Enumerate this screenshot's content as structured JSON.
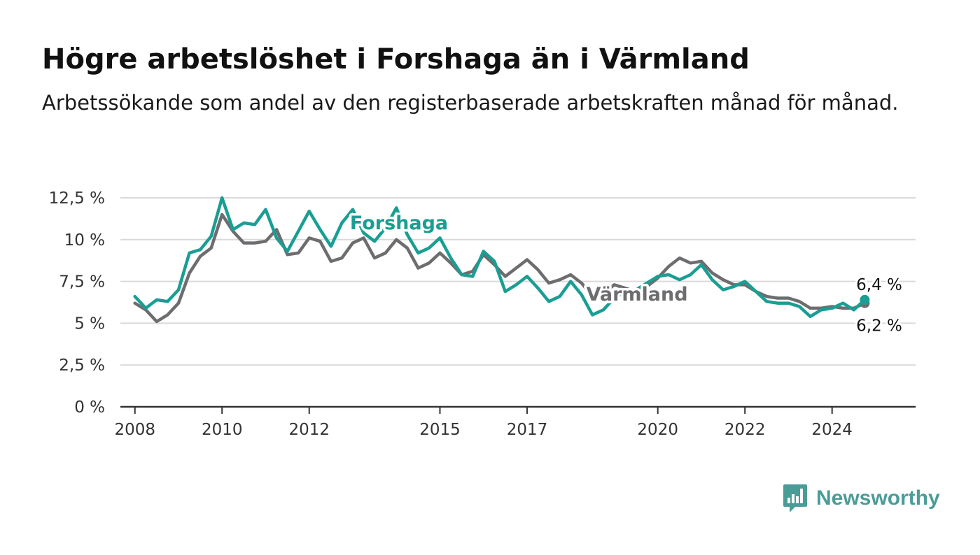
{
  "title": "Högre arbetslöshet i Forshaga än i Värmland",
  "subtitle": "Arbetssökande som andel av den registerbaserade arbetskraften månad för månad.",
  "brand": {
    "name": "Newsworthy",
    "icon": "bar-chart-speech-bubble-icon",
    "color": "#4a9c97"
  },
  "chart_data": {
    "type": "line",
    "ylim": [
      0,
      12.5
    ],
    "yticks": [
      0,
      2.5,
      5,
      7.5,
      10,
      12.5
    ],
    "ytick_labels": [
      "0 %",
      "2,5 %",
      "5 %",
      "7,5 %",
      "10 %",
      "12,5 %"
    ],
    "xlim": [
      "2007-09",
      "2025-12"
    ],
    "xticks": [
      "2008-01",
      "2010-01",
      "2012-01",
      "2015-01",
      "2017-01",
      "2020-01",
      "2022-01",
      "2024-01"
    ],
    "xtick_labels": [
      "2008",
      "2010",
      "2012",
      "2015",
      "2017",
      "2020",
      "2022",
      "2024"
    ],
    "grid": true,
    "series": [
      {
        "name": "Värmland",
        "color": "#6d6d70",
        "points": [
          [
            "2008-01",
            6.2
          ],
          [
            "2008-04",
            5.8
          ],
          [
            "2008-07",
            5.1
          ],
          [
            "2008-10",
            5.5
          ],
          [
            "2009-01",
            6.2
          ],
          [
            "2009-04",
            8.0
          ],
          [
            "2009-07",
            9.0
          ],
          [
            "2009-10",
            9.5
          ],
          [
            "2010-01",
            11.5
          ],
          [
            "2010-04",
            10.5
          ],
          [
            "2010-07",
            9.8
          ],
          [
            "2010-10",
            9.8
          ],
          [
            "2011-01",
            9.9
          ],
          [
            "2011-04",
            10.6
          ],
          [
            "2011-07",
            9.1
          ],
          [
            "2011-10",
            9.2
          ],
          [
            "2012-01",
            10.1
          ],
          [
            "2012-04",
            9.9
          ],
          [
            "2012-07",
            8.7
          ],
          [
            "2012-10",
            8.9
          ],
          [
            "2013-01",
            9.8
          ],
          [
            "2013-04",
            10.1
          ],
          [
            "2013-07",
            8.9
          ],
          [
            "2013-10",
            9.2
          ],
          [
            "2014-01",
            10.0
          ],
          [
            "2014-04",
            9.5
          ],
          [
            "2014-07",
            8.3
          ],
          [
            "2014-10",
            8.6
          ],
          [
            "2015-01",
            9.2
          ],
          [
            "2015-04",
            8.6
          ],
          [
            "2015-07",
            7.9
          ],
          [
            "2015-10",
            8.1
          ],
          [
            "2016-01",
            9.1
          ],
          [
            "2016-04",
            8.5
          ],
          [
            "2016-07",
            7.8
          ],
          [
            "2016-10",
            8.3
          ],
          [
            "2017-01",
            8.8
          ],
          [
            "2017-04",
            8.2
          ],
          [
            "2017-07",
            7.4
          ],
          [
            "2017-10",
            7.6
          ],
          [
            "2018-01",
            7.9
          ],
          [
            "2018-04",
            7.4
          ],
          [
            "2018-07",
            6.6
          ],
          [
            "2018-10",
            6.8
          ],
          [
            "2019-01",
            7.3
          ],
          [
            "2019-04",
            7.1
          ],
          [
            "2019-07",
            6.9
          ],
          [
            "2019-10",
            7.2
          ],
          [
            "2020-01",
            7.7
          ],
          [
            "2020-04",
            8.4
          ],
          [
            "2020-07",
            8.9
          ],
          [
            "2020-10",
            8.6
          ],
          [
            "2021-01",
            8.7
          ],
          [
            "2021-04",
            8.0
          ],
          [
            "2021-07",
            7.6
          ],
          [
            "2021-10",
            7.3
          ],
          [
            "2022-01",
            7.3
          ],
          [
            "2022-04",
            6.9
          ],
          [
            "2022-07",
            6.6
          ],
          [
            "2022-10",
            6.5
          ],
          [
            "2023-01",
            6.5
          ],
          [
            "2023-04",
            6.3
          ],
          [
            "2023-07",
            5.9
          ],
          [
            "2023-10",
            5.9
          ],
          [
            "2024-01",
            6.0
          ],
          [
            "2024-04",
            5.9
          ],
          [
            "2024-07",
            5.9
          ],
          [
            "2024-10",
            6.2
          ]
        ],
        "end_label": "6,2 %"
      },
      {
        "name": "Forshaga",
        "color": "#1a9e93",
        "points": [
          [
            "2008-01",
            6.6
          ],
          [
            "2008-04",
            5.9
          ],
          [
            "2008-07",
            6.4
          ],
          [
            "2008-10",
            6.3
          ],
          [
            "2009-01",
            7.0
          ],
          [
            "2009-04",
            9.2
          ],
          [
            "2009-07",
            9.4
          ],
          [
            "2009-10",
            10.2
          ],
          [
            "2010-01",
            12.5
          ],
          [
            "2010-04",
            10.6
          ],
          [
            "2010-07",
            11.0
          ],
          [
            "2010-10",
            10.9
          ],
          [
            "2011-01",
            11.8
          ],
          [
            "2011-04",
            10.1
          ],
          [
            "2011-07",
            9.3
          ],
          [
            "2011-10",
            10.5
          ],
          [
            "2012-01",
            11.7
          ],
          [
            "2012-04",
            10.6
          ],
          [
            "2012-07",
            9.6
          ],
          [
            "2012-10",
            11.0
          ],
          [
            "2013-01",
            11.8
          ],
          [
            "2013-04",
            10.4
          ],
          [
            "2013-07",
            9.9
          ],
          [
            "2013-10",
            10.7
          ],
          [
            "2014-01",
            11.9
          ],
          [
            "2014-04",
            10.3
          ],
          [
            "2014-07",
            9.2
          ],
          [
            "2014-10",
            9.5
          ],
          [
            "2015-01",
            10.1
          ],
          [
            "2015-04",
            8.9
          ],
          [
            "2015-07",
            7.9
          ],
          [
            "2015-10",
            7.8
          ],
          [
            "2016-01",
            9.3
          ],
          [
            "2016-04",
            8.7
          ],
          [
            "2016-07",
            6.9
          ],
          [
            "2016-10",
            7.3
          ],
          [
            "2017-01",
            7.8
          ],
          [
            "2017-04",
            7.1
          ],
          [
            "2017-07",
            6.3
          ],
          [
            "2017-10",
            6.6
          ],
          [
            "2018-01",
            7.5
          ],
          [
            "2018-04",
            6.7
          ],
          [
            "2018-07",
            5.5
          ],
          [
            "2018-10",
            5.8
          ],
          [
            "2019-01",
            6.5
          ],
          [
            "2019-04",
            6.9
          ],
          [
            "2019-07",
            7.0
          ],
          [
            "2019-10",
            7.4
          ],
          [
            "2020-01",
            7.8
          ],
          [
            "2020-04",
            7.9
          ],
          [
            "2020-07",
            7.6
          ],
          [
            "2020-10",
            7.9
          ],
          [
            "2021-01",
            8.5
          ],
          [
            "2021-04",
            7.6
          ],
          [
            "2021-07",
            7.0
          ],
          [
            "2021-10",
            7.2
          ],
          [
            "2022-01",
            7.5
          ],
          [
            "2022-04",
            6.9
          ],
          [
            "2022-07",
            6.3
          ],
          [
            "2022-10",
            6.2
          ],
          [
            "2023-01",
            6.2
          ],
          [
            "2023-04",
            6.0
          ],
          [
            "2023-07",
            5.4
          ],
          [
            "2023-10",
            5.8
          ],
          [
            "2024-01",
            5.9
          ],
          [
            "2024-04",
            6.2
          ],
          [
            "2024-07",
            5.8
          ],
          [
            "2024-10",
            6.4
          ]
        ],
        "end_label": "6,4 %"
      }
    ]
  }
}
